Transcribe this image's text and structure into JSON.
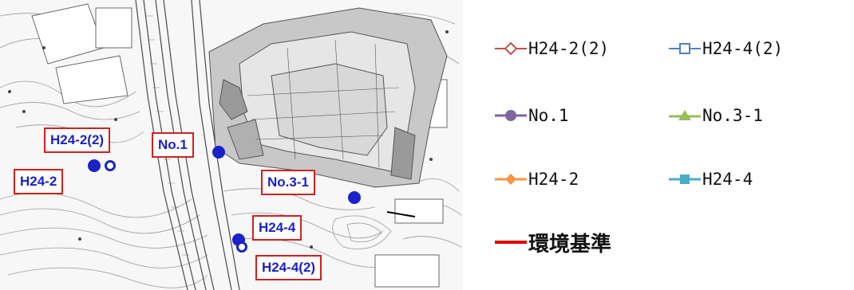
{
  "map": {
    "labels": {
      "h24_2_2": "H24-2(2)",
      "h24_2": "H24-2",
      "no1": "No.1",
      "no3_1": "No.3-1",
      "h24_4": "H24-4",
      "h24_4_2": "H24-4(2)"
    },
    "label_color": "#1a22c8",
    "box_color": "#d21f1f"
  },
  "legend": {
    "items": [
      {
        "label": "H24-2(2)",
        "color": "#c0504d",
        "marker": "open-diamond"
      },
      {
        "label": "H24-4(2)",
        "color": "#4f81bd",
        "marker": "open-square"
      },
      {
        "label": "No.1",
        "color": "#8064a2",
        "marker": "filled-circle"
      },
      {
        "label": "No.3-1",
        "color": "#9bbb59",
        "marker": "filled-triangle"
      },
      {
        "label": "H24-2",
        "color": "#f79646",
        "marker": "filled-diamond"
      },
      {
        "label": "H24-4",
        "color": "#4bacc6",
        "marker": "filled-square"
      },
      {
        "label": "環境基準",
        "color": "#e00000",
        "marker": "line"
      }
    ]
  }
}
